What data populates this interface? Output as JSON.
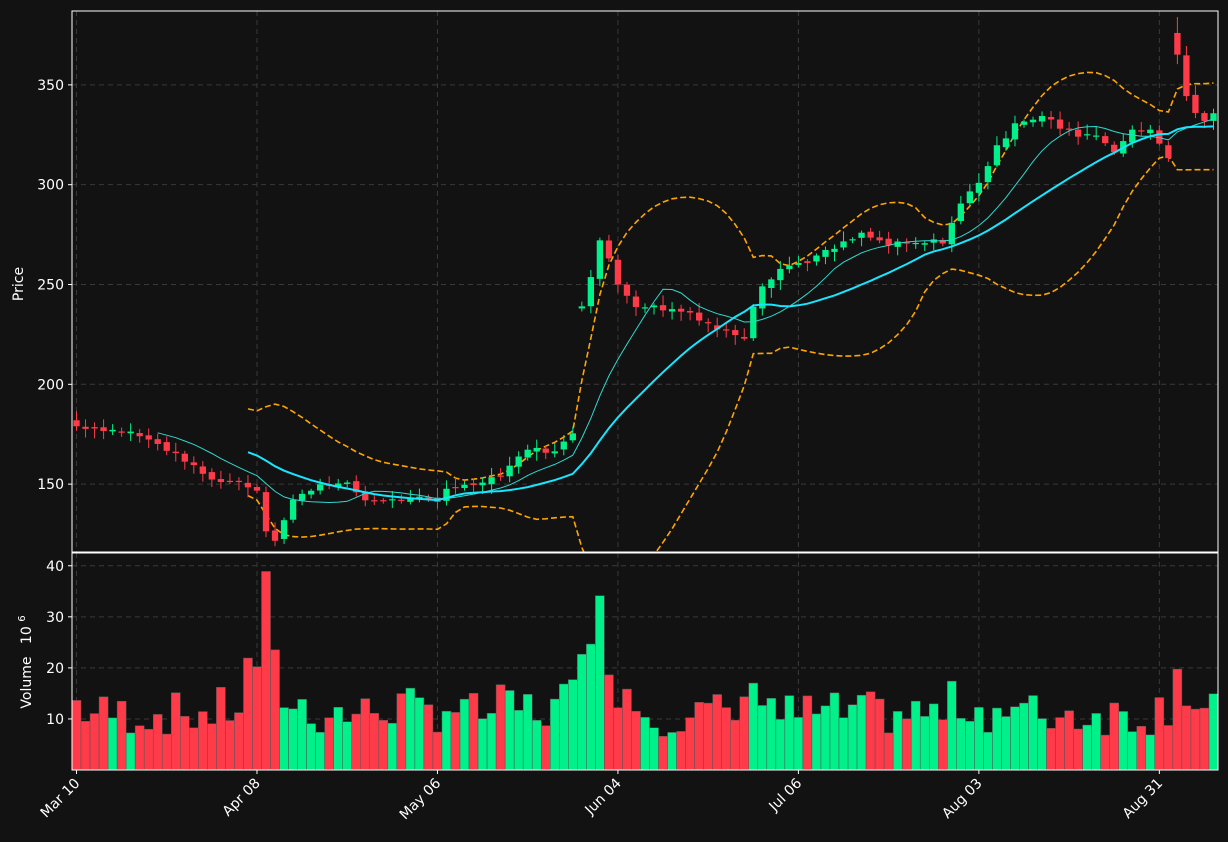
{
  "chart_data": {
    "type": "candlestick",
    "price_axis": {
      "label": "Price",
      "ticks": [
        150,
        200,
        250,
        300,
        350
      ],
      "range": [
        116,
        387
      ]
    },
    "volume_axis": {
      "label": "Volume",
      "exponent_label": "10",
      "exponent_sup": "6",
      "ticks": [
        10,
        20,
        30,
        40
      ],
      "range": [
        0,
        42.5
      ]
    },
    "x_ticks": [
      {
        "label": "Mar 10",
        "index": 0
      },
      {
        "label": "Apr 08",
        "index": 20
      },
      {
        "label": "May 06",
        "index": 40
      },
      {
        "label": "Jun 04",
        "index": 60
      },
      {
        "label": "Jul 06",
        "index": 80
      },
      {
        "label": "Aug 03",
        "index": 100
      },
      {
        "label": "Aug 31",
        "index": 120
      }
    ],
    "grid": true,
    "colors": {
      "up": "#00f08a",
      "down": "#ff3b4a",
      "background": "#121212",
      "ma_fast": "#2fd9cf",
      "ma_slow": "#18e6ff",
      "bollinger": "#ffa500",
      "grid": "#3a3a3a",
      "frame": "#ffffff"
    },
    "anchors": [
      [
        0,
        179,
        13
      ],
      [
        2,
        178,
        11
      ],
      [
        6,
        176,
        11
      ],
      [
        9,
        170,
        11
      ],
      [
        12,
        162,
        11
      ],
      [
        15,
        152,
        11
      ],
      [
        18,
        151,
        13
      ],
      [
        20,
        147,
        23
      ],
      [
        21,
        127,
        29
      ],
      [
        22,
        122,
        18
      ],
      [
        24,
        142,
        13
      ],
      [
        27,
        150,
        11
      ],
      [
        30,
        150,
        11
      ],
      [
        32,
        142,
        11
      ],
      [
        35,
        142,
        13
      ],
      [
        38,
        143,
        11
      ],
      [
        40,
        141,
        12
      ],
      [
        41,
        148,
        13
      ],
      [
        44,
        150,
        11
      ],
      [
        47,
        155,
        12
      ],
      [
        50,
        168,
        12
      ],
      [
        53,
        166,
        12
      ],
      [
        55,
        176,
        14
      ],
      [
        56,
        240,
        36
      ],
      [
        57,
        255,
        40
      ],
      [
        58,
        272,
        27
      ],
      [
        59,
        262,
        26
      ],
      [
        60,
        250,
        19
      ],
      [
        62,
        240,
        13
      ],
      [
        65,
        238,
        11
      ],
      [
        68,
        236,
        11
      ],
      [
        71,
        228,
        11
      ],
      [
        74,
        224,
        11
      ],
      [
        75,
        240,
        26
      ],
      [
        76,
        250,
        15
      ],
      [
        78,
        258,
        11
      ],
      [
        81,
        262,
        11
      ],
      [
        84,
        268,
        11
      ],
      [
        87,
        275,
        11
      ],
      [
        90,
        270,
        11
      ],
      [
        93,
        270,
        11
      ],
      [
        96,
        272,
        11
      ],
      [
        98,
        290,
        14
      ],
      [
        100,
        302,
        12
      ],
      [
        102,
        318,
        12
      ],
      [
        104,
        332,
        11
      ],
      [
        107,
        334,
        11
      ],
      [
        110,
        326,
        11
      ],
      [
        113,
        325,
        11
      ],
      [
        115,
        318,
        11
      ],
      [
        117,
        326,
        11
      ],
      [
        119,
        328,
        11
      ],
      [
        120,
        322,
        12
      ],
      [
        121,
        312,
        14
      ],
      [
        122,
        365,
        24
      ],
      [
        123,
        345,
        16
      ],
      [
        124,
        335,
        12
      ],
      [
        125,
        333,
        11
      ]
    ]
  }
}
